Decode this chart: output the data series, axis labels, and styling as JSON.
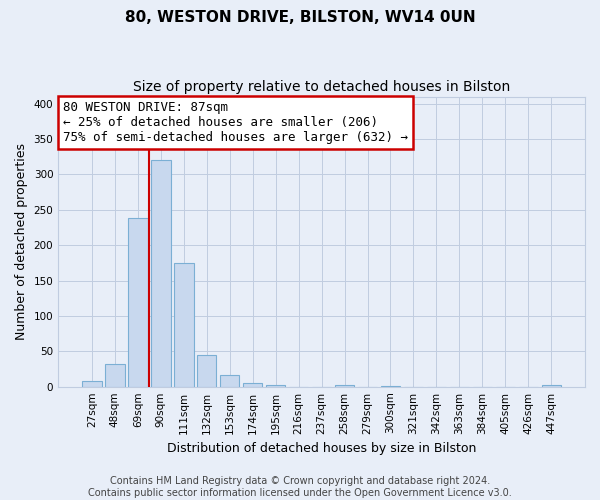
{
  "title": "80, WESTON DRIVE, BILSTON, WV14 0UN",
  "subtitle": "Size of property relative to detached houses in Bilston",
  "xlabel": "Distribution of detached houses by size in Bilston",
  "ylabel": "Number of detached properties",
  "bar_labels": [
    "27sqm",
    "48sqm",
    "69sqm",
    "90sqm",
    "111sqm",
    "132sqm",
    "153sqm",
    "174sqm",
    "195sqm",
    "216sqm",
    "237sqm",
    "258sqm",
    "279sqm",
    "300sqm",
    "321sqm",
    "342sqm",
    "363sqm",
    "384sqm",
    "405sqm",
    "426sqm",
    "447sqm"
  ],
  "bar_values": [
    8,
    32,
    238,
    320,
    175,
    45,
    17,
    5,
    2,
    0,
    0,
    3,
    0,
    1,
    0,
    0,
    0,
    0,
    0,
    0,
    2
  ],
  "bar_color": "#c8d8ee",
  "bar_edge_color": "#7bafd4",
  "vline_x_index": 2.5,
  "vline_color": "#cc0000",
  "annotation_line1": "80 WESTON DRIVE: 87sqm",
  "annotation_line2": "← 25% of detached houses are smaller (206)",
  "annotation_line3": "75% of semi-detached houses are larger (632) →",
  "annotation_box_color": "#ffffff",
  "annotation_box_edge": "#cc0000",
  "ylim": [
    0,
    410
  ],
  "yticks": [
    0,
    50,
    100,
    150,
    200,
    250,
    300,
    350,
    400
  ],
  "footer_line1": "Contains HM Land Registry data © Crown copyright and database right 2024.",
  "footer_line2": "Contains public sector information licensed under the Open Government Licence v3.0.",
  "bg_color": "#e8eef8",
  "plot_bg_color": "#e8eef8",
  "grid_color": "#c0cce0",
  "title_fontsize": 11,
  "subtitle_fontsize": 10,
  "xlabel_fontsize": 9,
  "ylabel_fontsize": 9,
  "tick_fontsize": 7.5,
  "footer_fontsize": 7,
  "annotation_fontsize": 9
}
